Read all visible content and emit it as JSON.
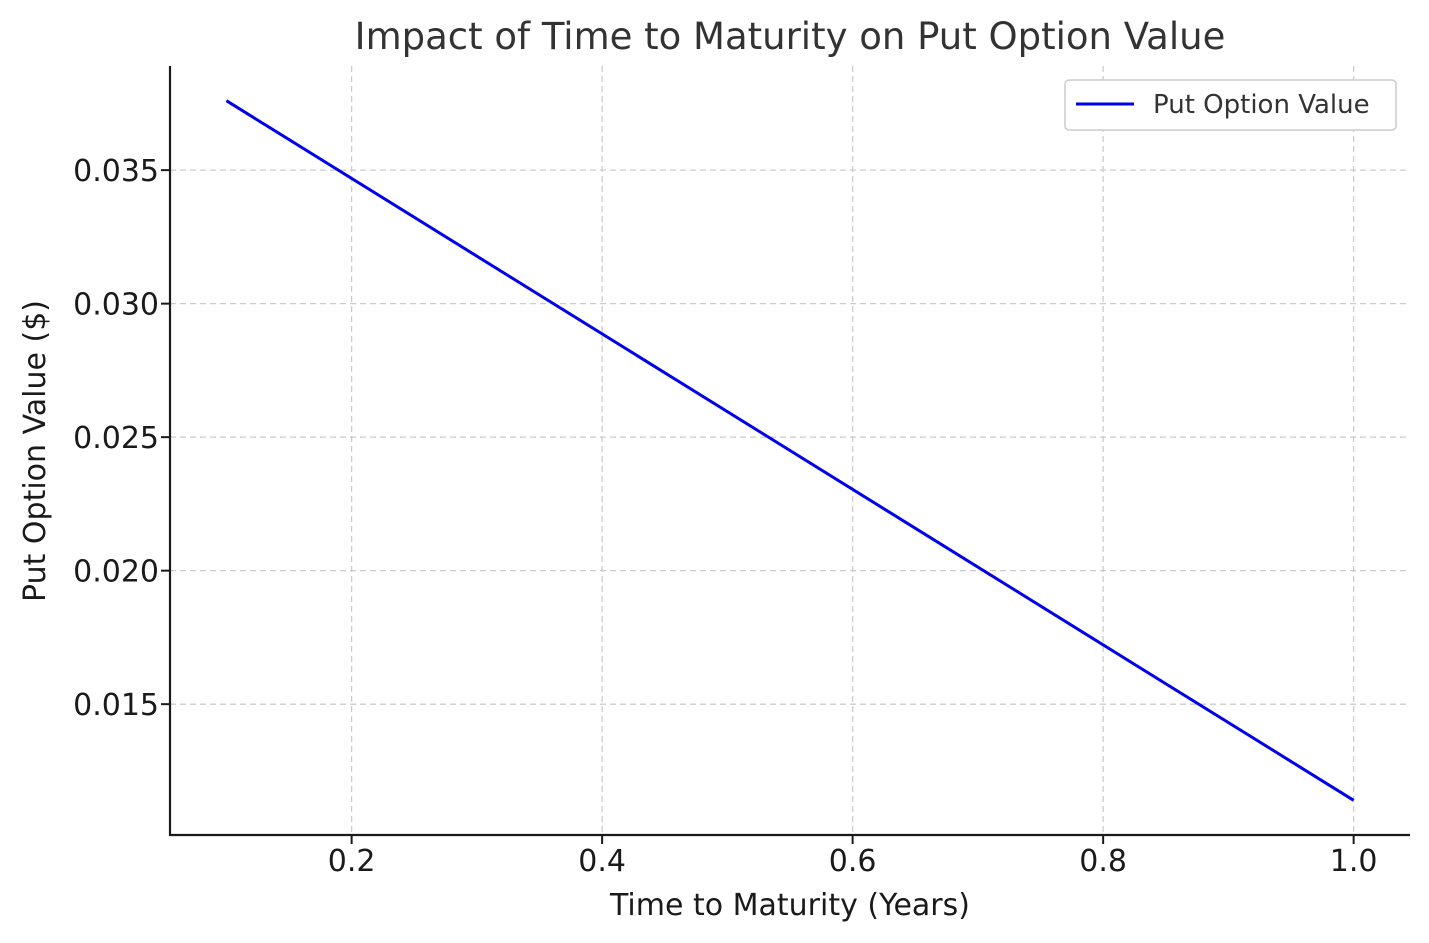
{
  "chart_data": {
    "type": "line",
    "title": "Impact of Time to Maturity on Put Option Value",
    "xlabel": "Time to Maturity (Years)",
    "ylabel": "Put Option Value ($)",
    "xlim": [
      0.055,
      1.045
    ],
    "ylim": [
      0.0101,
      0.0389
    ],
    "x_ticks": [
      0.2,
      0.4,
      0.6,
      0.8,
      1.0
    ],
    "x_tick_labels": [
      "0.2",
      "0.4",
      "0.6",
      "0.8",
      "1.0"
    ],
    "y_ticks": [
      0.015,
      0.02,
      0.025,
      0.03,
      0.035
    ],
    "y_tick_labels": [
      "0.015",
      "0.020",
      "0.025",
      "0.030",
      "0.035"
    ],
    "grid": true,
    "legend_position": "top-right",
    "series": [
      {
        "name": "Put Option Value",
        "color": "#0000ee",
        "x": [
          0.1,
          1.0
        ],
        "y": [
          0.0376,
          0.0114
        ]
      }
    ]
  }
}
